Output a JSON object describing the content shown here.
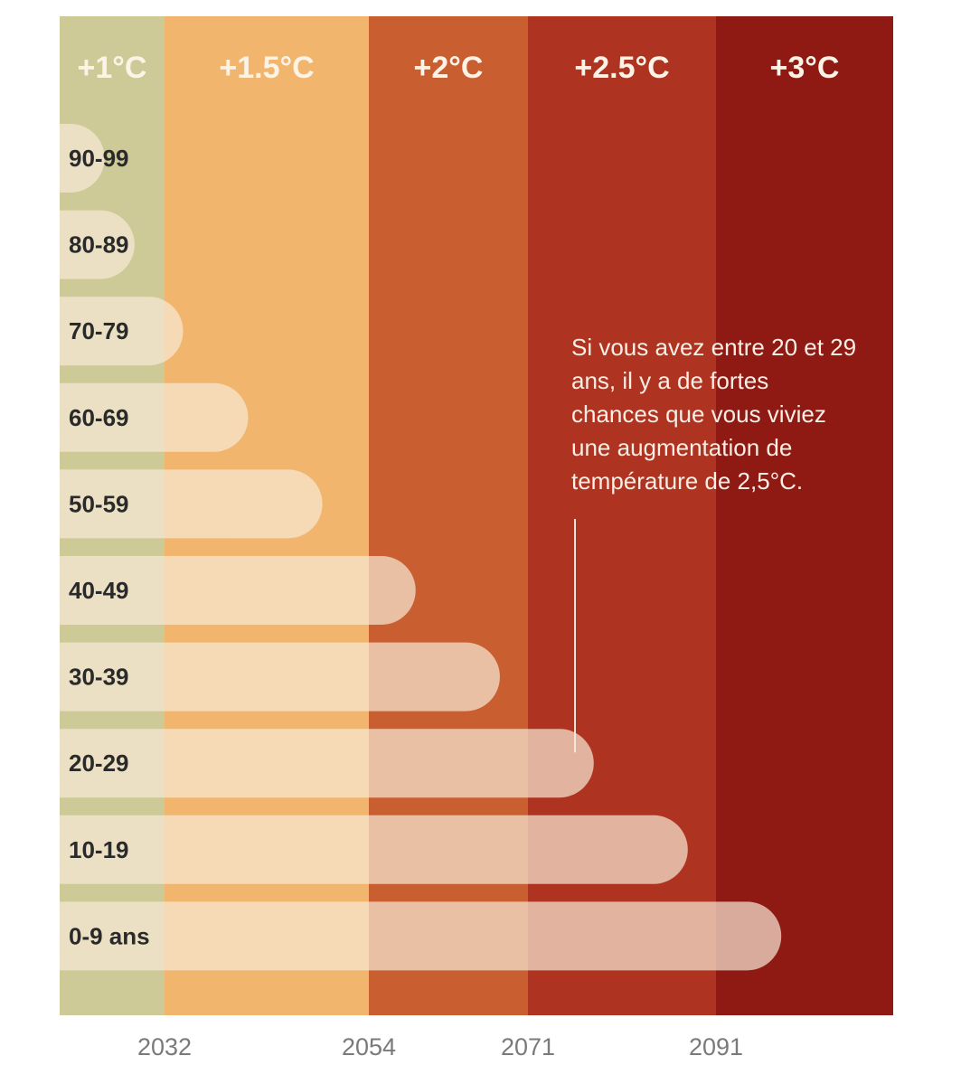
{
  "chart_data": {
    "type": "bar",
    "orientation": "horizontal",
    "bands": [
      {
        "label": "+1°C",
        "start": 2018,
        "end": 2032,
        "color": "#cdca98"
      },
      {
        "label": "+1.5°C",
        "start": 2032,
        "end": 2054,
        "color": "#f1b56d"
      },
      {
        "label": "+2°C",
        "start": 2054,
        "end": 2071,
        "color": "#c95f31"
      },
      {
        "label": "+2.5°C",
        "start": 2071,
        "end": 2091,
        "color": "#ae3321"
      },
      {
        "label": "+3°C",
        "start": 2091,
        "end": 2110,
        "color": "#8f1a14"
      }
    ],
    "categories": [
      "90-99",
      "80-89",
      "70-79",
      "60-69",
      "50-59",
      "40-49",
      "30-39",
      "20-29",
      "10-19",
      "0-9 ans"
    ],
    "values": [
      2024,
      2028,
      2034,
      2041,
      2049,
      2059,
      2068,
      2078,
      2088,
      2098
    ],
    "x_ticks": [
      "2032",
      "2054",
      "2071",
      "2091"
    ],
    "xlim": [
      2018,
      2110
    ],
    "bar_color": "#f8ead6",
    "annotation": {
      "text": "Si vous avez entre 20 et 29 ans, il y a de fortes chances que vous viviez une augmentation de température de 2,5°C.",
      "points_to": "20-29",
      "x": 2076
    },
    "title": "",
    "xlabel": "",
    "ylabel": ""
  }
}
